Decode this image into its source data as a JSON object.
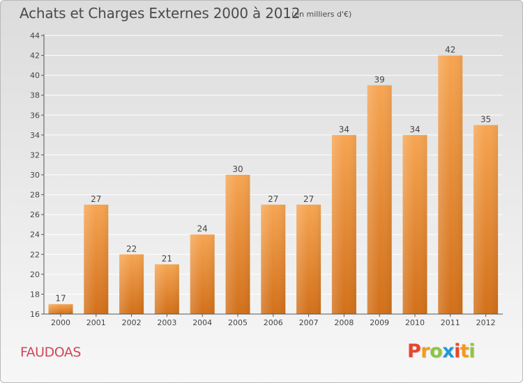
{
  "title": "Achats et Charges Externes 2000 à 2012",
  "subtitle": "(en milliers d'€)",
  "commune": "FAUDOAS",
  "logo": {
    "letters": [
      "P",
      "r",
      "o",
      "x",
      "i",
      "t",
      "i"
    ],
    "colors": [
      "#e8462a",
      "#f39a1e",
      "#8cc63f",
      "#1d9ad6",
      "#e8462a",
      "#f39a1e",
      "#8cc63f"
    ]
  },
  "chart_data": {
    "type": "bar",
    "title": "Achats et Charges Externes 2000 à 2012",
    "subtitle": "(en milliers d'€)",
    "categories": [
      "2000",
      "2001",
      "2002",
      "2003",
      "2004",
      "2005",
      "2006",
      "2007",
      "2008",
      "2009",
      "2010",
      "2011",
      "2012"
    ],
    "values": [
      17,
      27,
      22,
      21,
      24,
      30,
      27,
      27,
      34,
      39,
      34,
      42,
      35
    ],
    "ylim": [
      16,
      44
    ],
    "yticks": [
      16,
      18,
      20,
      22,
      24,
      26,
      28,
      30,
      32,
      34,
      36,
      38,
      40,
      42,
      44
    ],
    "grid": true,
    "bar_color": "#f08c2e"
  }
}
